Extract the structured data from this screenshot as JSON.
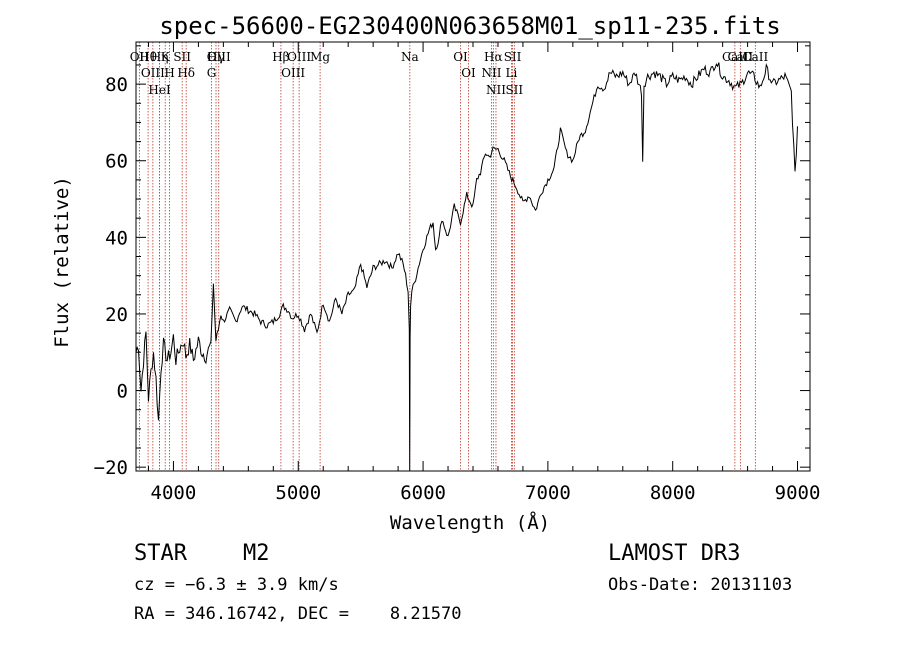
{
  "chart_data": {
    "type": "line",
    "title": "spec-56600-EG230400N063658M01_sp11-235.fits",
    "xlabel": "Wavelength (Å)",
    "ylabel": "Flux (relative)",
    "xlim": [
      3700,
      9100
    ],
    "ylim": [
      -21,
      91
    ],
    "xticks": [
      4000,
      5000,
      6000,
      7000,
      8000,
      9000
    ],
    "yticks": [
      -20,
      0,
      20,
      40,
      60,
      80
    ],
    "xtick_labels": [
      "4000",
      "5000",
      "6000",
      "7000",
      "8000",
      "9000"
    ],
    "ytick_labels": [
      "-20",
      "0",
      "20",
      "40",
      "60",
      "80"
    ],
    "series": [
      {
        "name": "flux",
        "x": [
          3700,
          3720,
          3740,
          3760,
          3780,
          3800,
          3820,
          3840,
          3860,
          3880,
          3900,
          3920,
          3950,
          3980,
          4000,
          4020,
          4050,
          4080,
          4100,
          4130,
          4160,
          4200,
          4230,
          4260,
          4300,
          4320,
          4340,
          4360,
          4380,
          4400,
          4450,
          4500,
          4550,
          4600,
          4650,
          4700,
          4750,
          4800,
          4850,
          4880,
          4920,
          4950,
          5000,
          5050,
          5100,
          5150,
          5200,
          5250,
          5300,
          5350,
          5400,
          5450,
          5500,
          5550,
          5600,
          5650,
          5700,
          5750,
          5800,
          5840,
          5860,
          5880,
          5890,
          5893,
          5896,
          5900,
          5910,
          5930,
          5960,
          6000,
          6050,
          6080,
          6100,
          6130,
          6150,
          6200,
          6250,
          6300,
          6350,
          6400,
          6430,
          6460,
          6500,
          6530,
          6560,
          6600,
          6650,
          6700,
          6750,
          6800,
          6850,
          6900,
          6950,
          7000,
          7050,
          7100,
          7150,
          7200,
          7250,
          7300,
          7350,
          7400,
          7450,
          7500,
          7550,
          7600,
          7650,
          7700,
          7750,
          7760,
          7770,
          7800,
          7850,
          7900,
          7950,
          8000,
          8050,
          8100,
          8150,
          8200,
          8250,
          8300,
          8350,
          8400,
          8450,
          8500,
          8550,
          8600,
          8650,
          8700,
          8750,
          8800,
          8850,
          8900,
          8950,
          8980,
          9000
        ],
        "y": [
          10,
          12,
          0,
          8,
          15,
          -2,
          5,
          10,
          3,
          -8,
          6,
          12,
          8,
          10,
          14,
          8,
          11,
          13,
          9,
          12,
          8,
          13,
          10,
          9,
          12,
          28,
          13,
          16,
          20,
          18,
          21,
          18,
          22,
          21,
          20,
          18,
          17,
          18,
          20,
          22,
          21,
          19,
          20,
          16,
          20,
          15,
          23,
          18,
          24,
          20,
          25,
          26,
          33,
          27,
          32,
          33,
          34,
          32,
          36,
          33,
          30,
          26,
          16,
          -21,
          14,
          22,
          26,
          28,
          32,
          37,
          42,
          44,
          37,
          40,
          45,
          40,
          48,
          44,
          51,
          48,
          55,
          57,
          62,
          61,
          63,
          63,
          60,
          56,
          53,
          49,
          51,
          47,
          52,
          55,
          58,
          68,
          62,
          60,
          66,
          68,
          74,
          80,
          79,
          83,
          82,
          83,
          80,
          83,
          78,
          60,
          80,
          82,
          83,
          82,
          80,
          82,
          81,
          82,
          80,
          82,
          84,
          83,
          86,
          82,
          81,
          79,
          80,
          83,
          82,
          79,
          84,
          80,
          81,
          82,
          78,
          56,
          69
        ]
      }
    ],
    "line_markers": [
      {
        "label": "Hθ",
        "x": 3797
      },
      {
        "label": "OII",
        "x": 3727
      },
      {
        "label": "OIII",
        "x": 3835
      },
      {
        "label": "K",
        "x": 3934
      },
      {
        "label": "HeI",
        "x": 3889
      },
      {
        "label": "Hη",
        "x": 3889
      },
      {
        "label": "H",
        "x": 3969
      },
      {
        "label": "SII",
        "x": 4070
      },
      {
        "label": "Hδ",
        "x": 4102
      },
      {
        "label": "OIII",
        "x": 4363
      },
      {
        "label": "Hγ",
        "x": 4341
      },
      {
        "label": "G",
        "x": 4305
      },
      {
        "label": "Hβ",
        "x": 4861
      },
      {
        "label": "OIII",
        "x": 5007
      },
      {
        "label": "OIII",
        "x": 4959
      },
      {
        "label": "Mg",
        "x": 5175
      },
      {
        "label": "Na",
        "x": 5894
      },
      {
        "label": "OI",
        "x": 6300
      },
      {
        "label": "OI",
        "x": 6364
      },
      {
        "label": "Hα",
        "x": 6563
      },
      {
        "label": "NII",
        "x": 6548
      },
      {
        "label": "NII",
        "x": 6584
      },
      {
        "label": "SII",
        "x": 6717
      },
      {
        "label": "Li",
        "x": 6708
      },
      {
        "label": "SII",
        "x": 6731
      },
      {
        "label": "CaII",
        "x": 8542
      },
      {
        "label": "CaII",
        "x": 8498
      },
      {
        "label": "CaII",
        "x": 8662
      }
    ]
  },
  "info": {
    "class": "STAR",
    "subclass": "M2",
    "survey": "LAMOST DR3",
    "cz": "cz = −6.3 ± 3.9 km/s",
    "obs_date": "Obs-Date: 20131103",
    "coords": "RA = 346.16742, DEC =    8.21570"
  },
  "colors": {
    "marker_line": "#c0392b",
    "spectrum": "#000000",
    "axis": "#000000"
  }
}
